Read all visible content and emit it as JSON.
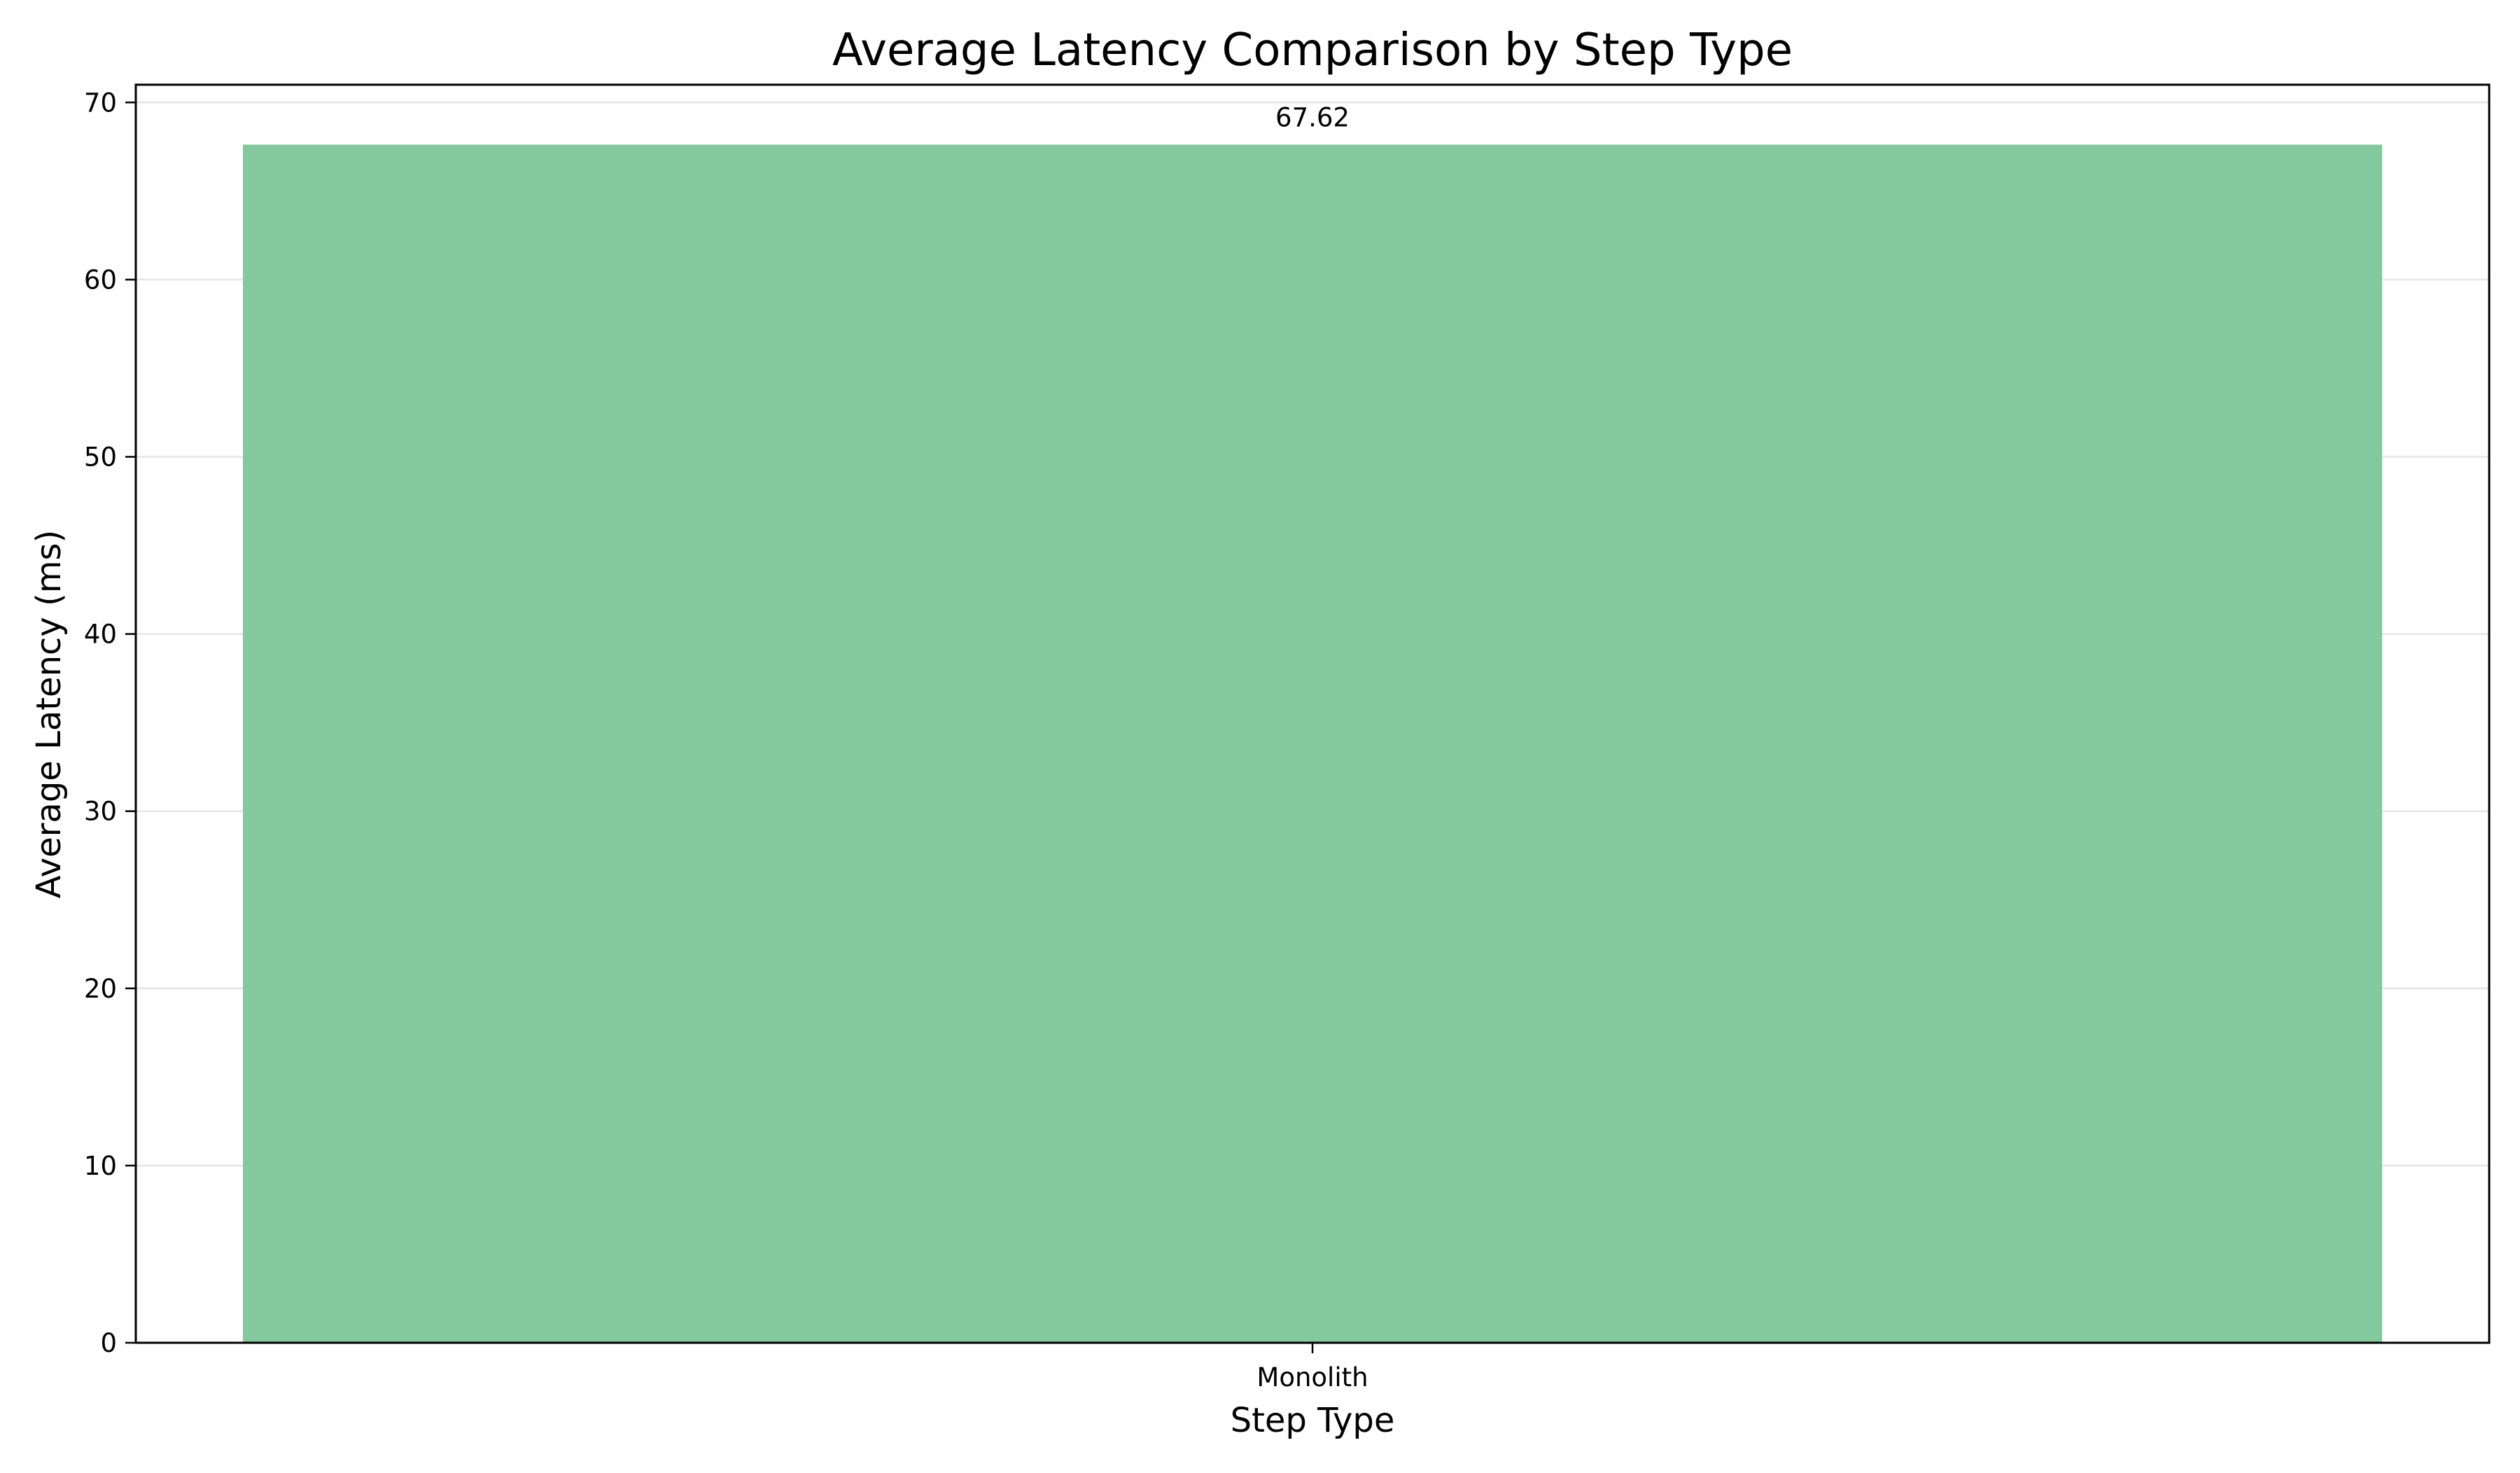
{
  "chart_data": {
    "type": "bar",
    "title": "Average Latency Comparison by Step Type",
    "xlabel": "Step Type",
    "ylabel": "Average Latency (ms)",
    "categories": [
      "Monolith"
    ],
    "values": [
      67.62
    ],
    "value_labels": [
      "67.62"
    ],
    "ylim": [
      0,
      71
    ],
    "yticks": [
      0,
      10,
      20,
      30,
      40,
      50,
      60,
      70
    ],
    "grid": "horizontal",
    "bar_color": "#84c99d",
    "grid_color": "#e5e5e5",
    "legend": "none"
  }
}
